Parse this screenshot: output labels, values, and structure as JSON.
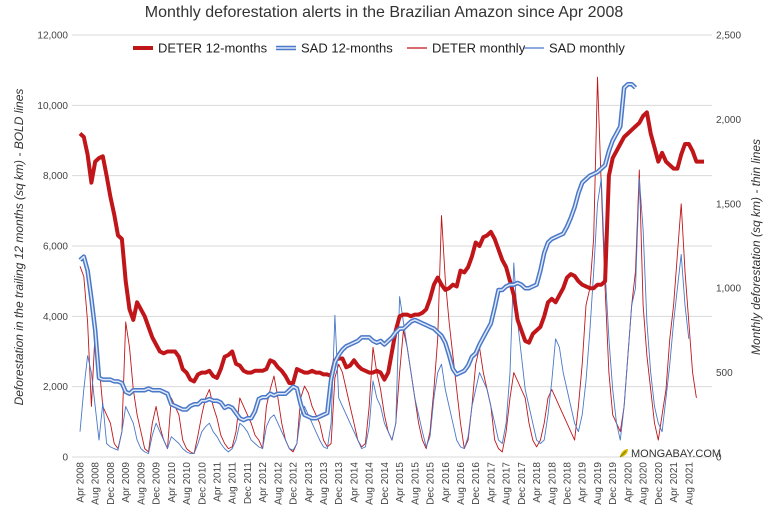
{
  "chart_data": {
    "type": "line",
    "title": "Monthly deforestation alerts in the Brazilian Amazon since Apr 2008",
    "ylabel_left": "Deforestation in the trailing 12 months (sq km) - BOLD lines",
    "ylabel_right": "Monthly deforestation (sq km) - thin lines",
    "ylim_left": [
      0,
      12000
    ],
    "ylim_right": [
      0,
      2500
    ],
    "yticks_left": [
      "0",
      "2,000",
      "4,000",
      "6,000",
      "8,000",
      "10,000",
      "12,000"
    ],
    "yticks_right": [
      "0",
      "500",
      "1,000",
      "1,500",
      "2,000",
      "2,500"
    ],
    "x_tick_labels": [
      "Apr 2008",
      "Aug 2008",
      "Dec 2008",
      "Apr 2009",
      "Aug 2009",
      "Dec 2009",
      "Apr 2010",
      "Aug 2010",
      "Dec 2010",
      "Apr 2011",
      "Aug 2011",
      "Dec 2011",
      "Apr 2012",
      "Aug 2012",
      "Dec 2012",
      "Apr 2013",
      "Aug 2013",
      "Dec 2013",
      "Apr 2014",
      "Aug 2014",
      "Dec 2014",
      "Apr 2015",
      "Aug 2015",
      "Dec 2015",
      "Apr 2016",
      "Aug 2016",
      "Dec 2016",
      "Apr 2017",
      "Aug 2017",
      "Dec 2017",
      "Apr 2018",
      "Aug 2018",
      "Dec 2018",
      "Apr 2019",
      "Aug 2019",
      "Dec 2019",
      "Apr 2020",
      "Aug 2020",
      "Dec 2020",
      "Apr 2021",
      "Aug 2021"
    ],
    "grid": true,
    "legend_position": "top",
    "credit": "MONGABAY.COM",
    "series": [
      {
        "name": "DETER 12-months",
        "axis": "left",
        "color": "#c0161a",
        "style": "bold",
        "x_start": "Apr 2008",
        "values": [
          9200,
          9100,
          8600,
          7800,
          8400,
          8500,
          8550,
          8000,
          7400,
          6900,
          6300,
          6200,
          5000,
          4200,
          3900,
          4400,
          4200,
          4000,
          3700,
          3400,
          3200,
          3000,
          2950,
          3000,
          3000,
          3000,
          2850,
          2500,
          2400,
          2200,
          2150,
          2350,
          2400,
          2400,
          2450,
          2300,
          2250,
          2500,
          2850,
          2900,
          3000,
          2650,
          2600,
          2450,
          2400,
          2400,
          2450,
          2450,
          2450,
          2500,
          2750,
          2700,
          2550,
          2450,
          2300,
          2100,
          2100,
          2500,
          2450,
          2400,
          2400,
          2450,
          2400,
          2400,
          2350,
          2350,
          2300,
          2750,
          2800,
          2800,
          2550,
          2600,
          2750,
          2600,
          2500,
          2450,
          2400,
          2400,
          2450,
          2400,
          2200,
          2400,
          3000,
          3600,
          4000,
          4050,
          4050,
          4000,
          4050,
          4050,
          4100,
          4200,
          4500,
          4900,
          5100,
          4900,
          4750,
          4800,
          4900,
          4850,
          5300,
          5250,
          5400,
          5700,
          6100,
          6000,
          6250,
          6300,
          6400,
          6200,
          5900,
          5600,
          5400,
          5000,
          4600,
          3900,
          3600,
          3300,
          3250,
          3500,
          3600,
          3700,
          4000,
          4400,
          4500,
          4400,
          4600,
          4800,
          5100,
          5200,
          5150,
          5000,
          4900,
          4850,
          4800,
          4800,
          4900,
          4900,
          5000,
          8000,
          8500,
          8700,
          8900,
          9100,
          9200,
          9300,
          9400,
          9500,
          9700,
          9800,
          9200,
          8800,
          8400,
          8650,
          8400,
          8300,
          8200,
          8200,
          8600,
          8900,
          8900,
          8700,
          8400,
          8400,
          8400
        ]
      },
      {
        "name": "SAD 12-months",
        "axis": "left",
        "color": "#4a78c8",
        "style": "bold",
        "x_start": "Apr 2008",
        "values": [
          5600,
          5700,
          5300,
          4500,
          3600,
          2250,
          2200,
          2200,
          2200,
          2150,
          2150,
          2100,
          1850,
          1800,
          1900,
          1900,
          1900,
          1900,
          1950,
          1900,
          1900,
          1900,
          1850,
          1800,
          1500,
          1450,
          1400,
          1350,
          1350,
          1450,
          1500,
          1500,
          1600,
          1600,
          1650,
          1600,
          1600,
          1550,
          1400,
          1450,
          1400,
          1250,
          1100,
          1050,
          1100,
          1100,
          1300,
          1650,
          1700,
          1700,
          1800,
          1750,
          1800,
          1800,
          1800,
          1900,
          2000,
          1950,
          1500,
          1200,
          1150,
          1100,
          1100,
          1150,
          1200,
          1250,
          2200,
          2700,
          2900,
          3050,
          3150,
          3200,
          3250,
          3300,
          3400,
          3400,
          3400,
          3300,
          3250,
          3300,
          3200,
          3300,
          3400,
          3550,
          3650,
          3650,
          3750,
          3850,
          3900,
          3850,
          3800,
          3750,
          3700,
          3650,
          3550,
          3450,
          3250,
          2900,
          2500,
          2350,
          2400,
          2450,
          2600,
          2850,
          2950,
          3200,
          3400,
          3600,
          3800,
          4250,
          4750,
          4750,
          4850,
          4900,
          4900,
          4950,
          4900,
          4800,
          4800,
          4850,
          4900,
          5300,
          5800,
          6100,
          6200,
          6250,
          6300,
          6350,
          6550,
          6800,
          7100,
          7500,
          7800,
          7900,
          8000,
          8050,
          8100,
          8200,
          8300,
          8700,
          9000,
          9200,
          9400,
          10500,
          10600,
          10600,
          10500
        ]
      },
      {
        "name": "DETER monthly",
        "axis": "right",
        "color": "#c0161a",
        "style": "thin",
        "x_start": "Apr 2008",
        "values": [
          1130,
          1070,
          800,
          300,
          750,
          550,
          300,
          250,
          200,
          80,
          50,
          150,
          800,
          650,
          400,
          250,
          150,
          50,
          30,
          200,
          300,
          180,
          100,
          50,
          350,
          300,
          250,
          100,
          50,
          30,
          20,
          130,
          250,
          350,
          400,
          300,
          230,
          130,
          80,
          50,
          60,
          150,
          350,
          300,
          250,
          200,
          130,
          100,
          50,
          300,
          400,
          480,
          350,
          200,
          100,
          50,
          30,
          80,
          350,
          420,
          380,
          300,
          250,
          200,
          100,
          60,
          80,
          470,
          550,
          500,
          400,
          300,
          200,
          100,
          60,
          80,
          300,
          650,
          500,
          400,
          250,
          150,
          100,
          200,
          500,
          750,
          650,
          500,
          350,
          200,
          100,
          50,
          150,
          400,
          700,
          1430,
          1050,
          800,
          600,
          400,
          200,
          50,
          100,
          300,
          550,
          650,
          500,
          400,
          300,
          100,
          50,
          30,
          150,
          350,
          500,
          450,
          400,
          350,
          200,
          100,
          60,
          100,
          200,
          350,
          400,
          350,
          300,
          250,
          200,
          150,
          100,
          300,
          550,
          900,
          1000,
          1300,
          2250,
          1600,
          1000,
          500,
          250,
          200,
          150,
          300,
          600,
          900,
          1100,
          1700,
          900,
          600,
          400,
          200,
          100,
          250,
          400,
          700,
          900,
          1200,
          1500,
          1100,
          800,
          500,
          350
        ]
      },
      {
        "name": "SAD monthly",
        "axis": "right",
        "color": "#4a78c8",
        "style": "thin",
        "x_start": "Apr 2008",
        "values": [
          150,
          400,
          600,
          500,
          300,
          100,
          320,
          80,
          60,
          50,
          40,
          150,
          300,
          250,
          200,
          100,
          50,
          30,
          20,
          130,
          200,
          150,
          100,
          50,
          120,
          100,
          80,
          50,
          30,
          20,
          20,
          80,
          150,
          180,
          200,
          150,
          120,
          80,
          50,
          30,
          50,
          100,
          200,
          180,
          150,
          100,
          80,
          60,
          50,
          180,
          230,
          250,
          200,
          150,
          100,
          50,
          40,
          80,
          250,
          300,
          250,
          200,
          150,
          100,
          60,
          50,
          200,
          840,
          350,
          300,
          250,
          200,
          150,
          100,
          50,
          60,
          180,
          450,
          350,
          300,
          200,
          150,
          100,
          200,
          950,
          800,
          650,
          500,
          350,
          250,
          150,
          60,
          120,
          350,
          500,
          550,
          400,
          300,
          200,
          100,
          60,
          50,
          120,
          300,
          400,
          500,
          450,
          400,
          300,
          200,
          100,
          80,
          200,
          500,
          1150,
          800,
          600,
          400,
          300,
          200,
          100,
          80,
          100,
          250,
          450,
          700,
          650,
          500,
          400,
          300,
          200,
          150,
          250,
          450,
          750,
          1100,
          1500,
          1650,
          1100,
          700,
          400,
          200,
          100,
          300,
          600,
          900,
          1000,
          1650,
          1350,
          800,
          500,
          300,
          200,
          150,
          350,
          550,
          800,
          1000,
          1200,
          900,
          700
        ]
      }
    ]
  }
}
